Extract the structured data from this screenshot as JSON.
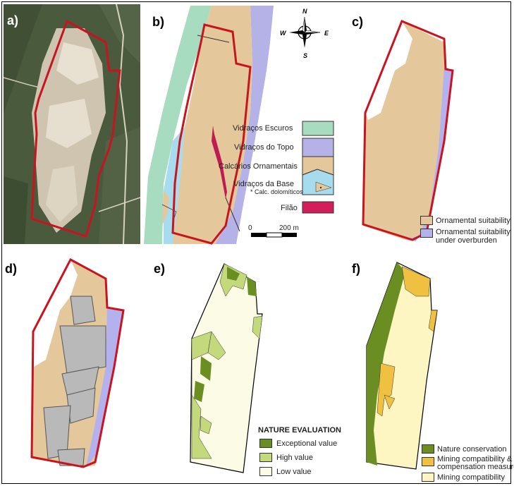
{
  "panels": {
    "a": {
      "label": "a)"
    },
    "b": {
      "label": "b)",
      "compass": {
        "n": "N",
        "s": "S",
        "e": "E",
        "w": "W"
      },
      "scale": {
        "zero": "0",
        "distance": "200 m"
      },
      "legend": [
        {
          "label": "Vidraços Escuros",
          "color": "#a8dcc0"
        },
        {
          "label": "Vidraços do Topo",
          "color": "#b4b2e6"
        },
        {
          "label": "Calcários Ornamentais",
          "color": "#e4c89c"
        },
        {
          "label": "Vidraços da Base",
          "color": "#a6dcee"
        },
        {
          "label": "Filão",
          "color": "#d21e5a"
        }
      ],
      "legend_note": "* Calc. dolomíticos"
    },
    "c": {
      "label": "c)",
      "legend": [
        {
          "label": "Ornamental suitability",
          "color": "#e4c89c"
        },
        {
          "label_line1": "Ornamental suitability",
          "label_line2": "under overburden",
          "color": "#b4b2ee"
        }
      ]
    },
    "d": {
      "label": "d)"
    },
    "e": {
      "label": "e)",
      "legend_title": "NATURE EVALUATION",
      "legend": [
        {
          "label": "Exceptional value",
          "color": "#6b8e23"
        },
        {
          "label": "High value",
          "color": "#c3d97c"
        },
        {
          "label": "Low value",
          "color": "#fbfbe6"
        }
      ]
    },
    "f": {
      "label": "f)",
      "legend": [
        {
          "label": "Nature conservation",
          "color": "#6b8e23"
        },
        {
          "label_line1": "Mining compatibility &",
          "label_line2": "compensation measure",
          "color": "#f0c040"
        },
        {
          "label": "Mining compatibility",
          "color": "#fdf6c3"
        }
      ]
    }
  }
}
